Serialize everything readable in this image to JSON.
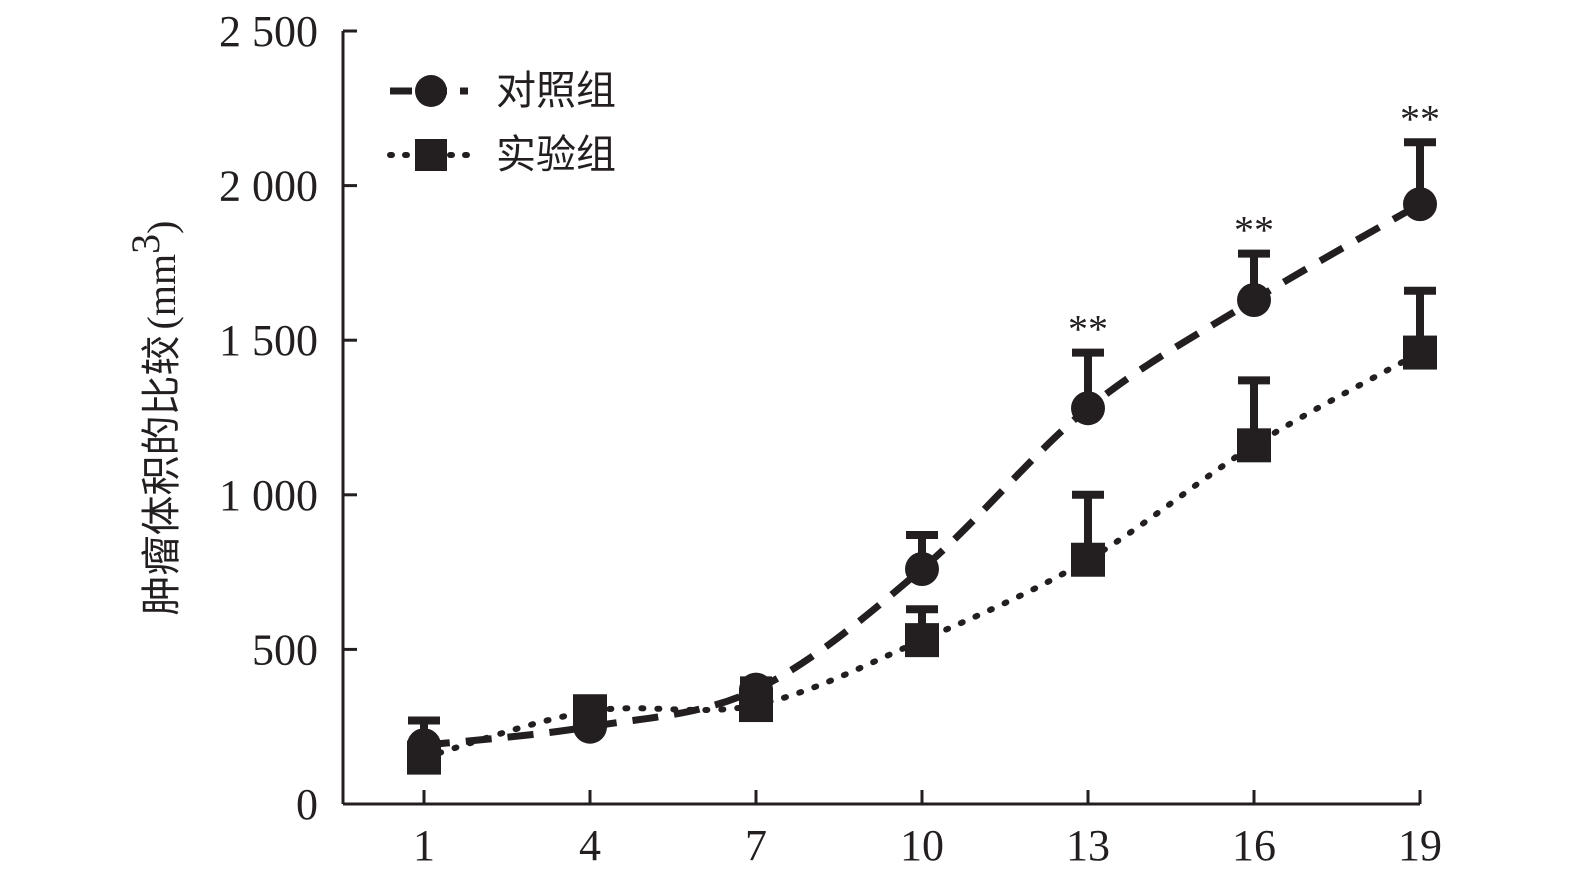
{
  "chart_data": {
    "type": "line",
    "x": [
      1,
      4,
      7,
      10,
      13,
      16,
      19
    ],
    "xticks": [
      "1",
      "4",
      "7",
      "10",
      "13",
      "16",
      "19"
    ],
    "xlabel": "",
    "ylabel": "肿瘤体积的比较",
    "ylabel_unit_prefix": "(mm",
    "ylabel_unit_sup": "3",
    "ylabel_unit_suffix": ")",
    "ylim": [
      0,
      2500
    ],
    "yticks": [
      0,
      500,
      1000,
      1500,
      2000,
      2500
    ],
    "ytick_labels": [
      "0",
      "500",
      "1 000",
      "1 500",
      "2 000",
      "2 500"
    ],
    "grid": false,
    "legend_position": "top-left",
    "series": [
      {
        "name": "对照组",
        "marker": "circle",
        "line_style": "dashed",
        "color": "#231f20",
        "values": [
          190,
          250,
          370,
          760,
          1280,
          1630,
          1940
        ],
        "error": [
          80,
          40,
          30,
          110,
          180,
          150,
          200
        ]
      },
      {
        "name": "实验组",
        "marker": "square",
        "line_style": "dotted",
        "color": "#231f20",
        "values": [
          150,
          300,
          320,
          530,
          790,
          1160,
          1460
        ],
        "error": [
          0,
          0,
          0,
          100,
          210,
          210,
          200
        ]
      }
    ],
    "annotations": [
      {
        "x": 13,
        "text": "**"
      },
      {
        "x": 16,
        "text": "**"
      },
      {
        "x": 19,
        "text": "**"
      }
    ]
  }
}
